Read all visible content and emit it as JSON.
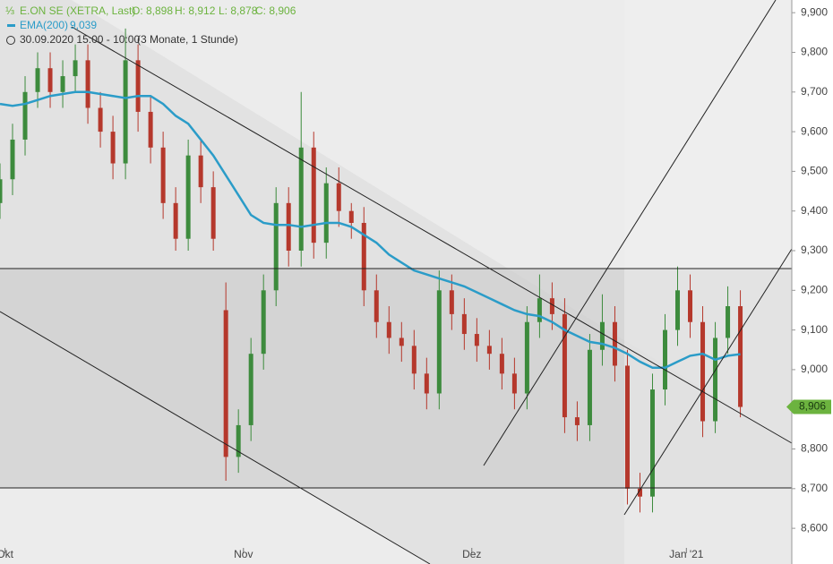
{
  "chart_data": {
    "type": "candlestick",
    "title": "E.ON SE (XETRA, Last)",
    "ohlc_labels": [
      "O: 8,898",
      "H: 8,912",
      "L: 8,878",
      "C: 8,906"
    ],
    "ema_value_label": "9,039",
    "subtitle": "30.09.2020 15:00 - 10:00",
    "period": "(3 Monate, 1 Stunde)",
    "price_tag": "8,906",
    "up_color": "#3d8b3d",
    "down_color": "#b5382c",
    "xlim": [
      0,
      63.1
    ],
    "xticks": [
      {
        "value": 0.4,
        "label": "Okt"
      },
      {
        "value": 19.4,
        "label": "Nov"
      },
      {
        "value": 37.6,
        "label": "Dez"
      },
      {
        "value": 54.7,
        "label": "Jan '21"
      }
    ],
    "ylim": [
      8510,
      9932
    ],
    "yticks": [
      {
        "value": 8600,
        "label": "8,600"
      },
      {
        "value": 8700,
        "label": "8,700"
      },
      {
        "value": 8800,
        "label": "8,800"
      },
      {
        "value": 8900,
        "label": "8,900"
      },
      {
        "value": 9000,
        "label": "9,000"
      },
      {
        "value": 9100,
        "label": "9,100"
      },
      {
        "value": 9200,
        "label": "9,200"
      },
      {
        "value": 9300,
        "label": "9,300"
      },
      {
        "value": 9400,
        "label": "9,400"
      },
      {
        "value": 9500,
        "label": "9,500"
      },
      {
        "value": 9600,
        "label": "9,600"
      },
      {
        "value": 9700,
        "label": "9,700"
      },
      {
        "value": 9800,
        "label": "9,800"
      },
      {
        "value": 9900,
        "label": "9,900"
      }
    ],
    "open": [
      9420,
      9480,
      9580,
      9700,
      9760,
      9700,
      9740,
      9780,
      9660,
      9600,
      9520,
      9780,
      9650,
      9560,
      9420,
      9330,
      9540,
      9460,
      9150,
      8780,
      8860,
      9040,
      9200,
      9420,
      9300,
      9560,
      9320,
      9470,
      9400,
      9370,
      9200,
      9120,
      9080,
      9060,
      8990,
      8940,
      9200,
      9140,
      9090,
      9060,
      9040,
      8990,
      8940,
      9120,
      9180,
      9140,
      8880,
      8860,
      9050,
      9120,
      9010,
      8700,
      8680,
      8950,
      9100,
      9200,
      9120,
      8870,
      9080,
      9160
    ],
    "high": [
      9520,
      9620,
      9740,
      9800,
      9800,
      9780,
      9820,
      9820,
      9700,
      9640,
      9860,
      9820,
      9690,
      9600,
      9460,
      9580,
      9580,
      9500,
      9220,
      8900,
      9080,
      9240,
      9460,
      9460,
      9700,
      9600,
      9510,
      9510,
      9420,
      9410,
      9240,
      9160,
      9120,
      9100,
      9030,
      9250,
      9240,
      9180,
      9130,
      9100,
      9080,
      9030,
      9160,
      9240,
      9220,
      9180,
      8920,
      9090,
      9190,
      9160,
      9050,
      8740,
      8990,
      9140,
      9260,
      9240,
      9160,
      9120,
      9210,
      9200
    ],
    "low": [
      9380,
      9440,
      9540,
      9660,
      9660,
      9660,
      9700,
      9620,
      9560,
      9480,
      9480,
      9600,
      9520,
      9380,
      9300,
      9300,
      9420,
      9300,
      8720,
      8740,
      8820,
      9000,
      9160,
      9260,
      9260,
      9280,
      9280,
      9360,
      9330,
      9160,
      9080,
      9040,
      9020,
      8950,
      8900,
      8900,
      9100,
      9050,
      9020,
      9000,
      8950,
      8900,
      8900,
      9080,
      9100,
      8840,
      8820,
      8820,
      9010,
      8970,
      8660,
      8640,
      8640,
      8910,
      9060,
      9080,
      8830,
      8840,
      9040,
      8880
    ],
    "close": [
      9480,
      9580,
      9700,
      9760,
      9700,
      9740,
      9780,
      9660,
      9600,
      9520,
      9780,
      9650,
      9560,
      9420,
      9330,
      9540,
      9460,
      9330,
      8780,
      8860,
      9040,
      9200,
      9420,
      9300,
      9560,
      9320,
      9470,
      9400,
      9370,
      9200,
      9120,
      9080,
      9060,
      8990,
      8940,
      9200,
      9140,
      9090,
      9060,
      9040,
      8990,
      8940,
      9120,
      9180,
      9140,
      8880,
      8860,
      9050,
      9120,
      9010,
      8700,
      8680,
      8950,
      9100,
      9200,
      9120,
      8870,
      9080,
      9160,
      8906
    ],
    "series": [
      {
        "name": "EMA(200)",
        "color": "#2b9cc8",
        "values": [
          9670,
          9665,
          9670,
          9680,
          9690,
          9695,
          9700,
          9700,
          9695,
          9690,
          9685,
          9690,
          9690,
          9670,
          9640,
          9620,
          9580,
          9540,
          9490,
          9440,
          9390,
          9370,
          9365,
          9365,
          9360,
          9365,
          9370,
          9370,
          9360,
          9340,
          9320,
          9290,
          9270,
          9250,
          9240,
          9230,
          9220,
          9210,
          9195,
          9180,
          9165,
          9150,
          9140,
          9135,
          9120,
          9100,
          9085,
          9070,
          9065,
          9055,
          9040,
          9020,
          9005,
          9005,
          9020,
          9035,
          9040,
          9025,
          9035,
          9039
        ]
      }
    ]
  }
}
